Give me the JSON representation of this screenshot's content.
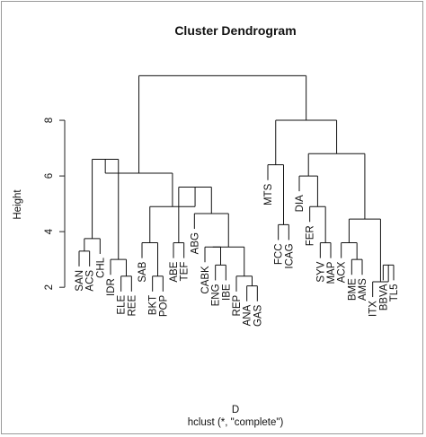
{
  "chart_data": {
    "type": "dendrogram",
    "title": "Cluster Dendrogram",
    "xlabel": "D",
    "sub": "hclust (*, \"complete\")",
    "ylabel": "Height",
    "yticks": [
      2,
      4,
      6,
      8
    ],
    "ylim": [
      1.2,
      10.0
    ],
    "leaves": [
      "SAN",
      "ACS",
      "CHL",
      "IDR",
      "ELE",
      "REE",
      "SAB",
      "BKT",
      "POP",
      "ABE",
      "TEF",
      "ABG",
      "CABK",
      "ENG",
      "IBE",
      "REP",
      "ANA",
      "GAS",
      "MTS",
      "FCC",
      "ICAG",
      "DIA",
      "FER",
      "SYV",
      "MAP",
      "ACX",
      "BME",
      "AMS",
      "ITX",
      "BBVA",
      "TL5"
    ],
    "merges": [
      {
        "id": "m1",
        "a": "SAN",
        "b": "ACS",
        "height": 3.3
      },
      {
        "id": "m2",
        "a": "m1",
        "b": "CHL",
        "height": 3.75
      },
      {
        "id": "m3",
        "a": "ELE",
        "b": "REE",
        "height": 2.4
      },
      {
        "id": "m4",
        "a": "IDR",
        "b": "m3",
        "height": 3.0
      },
      {
        "id": "m5",
        "a": "m2",
        "b": "m4",
        "height": 6.6
      },
      {
        "id": "m6",
        "a": "BKT",
        "b": "POP",
        "height": 2.4
      },
      {
        "id": "m7",
        "a": "SAB",
        "b": "m6",
        "height": 3.6
      },
      {
        "id": "m8",
        "a": "ABE",
        "b": "TEF",
        "height": 3.6
      },
      {
        "id": "m9",
        "a": "ENG",
        "b": "IBE",
        "height": 2.8
      },
      {
        "id": "m10",
        "a": "CABK",
        "b": "m9",
        "height": 3.45
      },
      {
        "id": "m11",
        "a": "ANA",
        "b": "GAS",
        "height": 2.05
      },
      {
        "id": "m12",
        "a": "REP",
        "b": "m11",
        "height": 2.4
      },
      {
        "id": "m13",
        "a": "m10",
        "b": "m12",
        "height": 3.45
      },
      {
        "id": "m14",
        "a": "ABG",
        "b": "m13",
        "height": 4.65
      },
      {
        "id": "m15",
        "a": "m8",
        "b": "m14",
        "height": 5.6
      },
      {
        "id": "m16",
        "a": "m7",
        "b": "m15",
        "height": 4.9
      },
      {
        "id": "m17",
        "a": "m5",
        "b": "m16",
        "height": 6.1
      },
      {
        "id": "m18",
        "a": "FCC",
        "b": "ICAG",
        "height": 4.25
      },
      {
        "id": "m19",
        "a": "MTS",
        "b": "m18",
        "height": 6.4
      },
      {
        "id": "m20",
        "a": "SYV",
        "b": "MAP",
        "height": 3.6
      },
      {
        "id": "m21",
        "a": "FER",
        "b": "m20",
        "height": 4.9
      },
      {
        "id": "m22",
        "a": "DIA",
        "b": "m21",
        "height": 6.0
      },
      {
        "id": "m23",
        "a": "BME",
        "b": "AMS",
        "height": 3.0
      },
      {
        "id": "m24",
        "a": "ACX",
        "b": "m23",
        "height": 3.6
      },
      {
        "id": "m25",
        "a": "BBVA",
        "b": "TL5",
        "height": 2.8
      },
      {
        "id": "m26",
        "a": "ITX",
        "b": "m25",
        "height": 2.2
      },
      {
        "id": "m27",
        "a": "m24",
        "b": "m26",
        "height": 4.45
      },
      {
        "id": "m28",
        "a": "m22",
        "b": "m27",
        "height": 6.8
      },
      {
        "id": "m29",
        "a": "m19",
        "b": "m28",
        "height": 8.0
      },
      {
        "id": "m30",
        "a": "m17",
        "b": "m29",
        "height": 9.6
      }
    ]
  }
}
